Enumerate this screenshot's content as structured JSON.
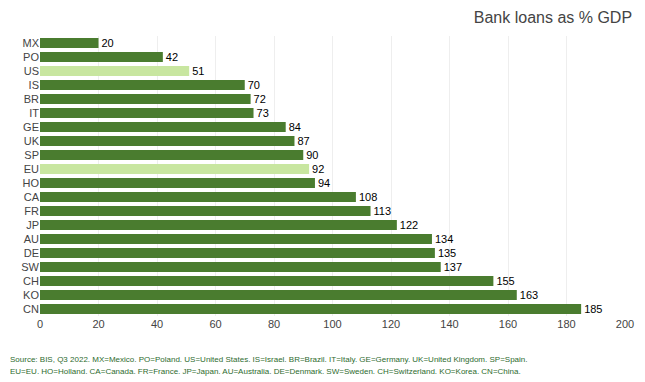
{
  "chart_data": {
    "type": "bar",
    "orientation": "horizontal",
    "title": "Bank loans as % GDP",
    "categories": [
      "MX",
      "PO",
      "US",
      "IS",
      "BR",
      "IT",
      "GE",
      "UK",
      "SP",
      "EU",
      "HO",
      "CA",
      "FR",
      "JP",
      "AU",
      "DE",
      "SW",
      "CH",
      "KO",
      "CN"
    ],
    "values": [
      20,
      42,
      51,
      70,
      72,
      73,
      84,
      87,
      90,
      92,
      94,
      108,
      113,
      122,
      134,
      135,
      137,
      155,
      163,
      185
    ],
    "colors": [
      "#4a7c2f",
      "#4a7c2f",
      "#c8e6a0",
      "#4a7c2f",
      "#4a7c2f",
      "#4a7c2f",
      "#4a7c2f",
      "#4a7c2f",
      "#4a7c2f",
      "#c8e6a0",
      "#4a7c2f",
      "#4a7c2f",
      "#4a7c2f",
      "#4a7c2f",
      "#4a7c2f",
      "#4a7c2f",
      "#4a7c2f",
      "#4a7c2f",
      "#4a7c2f",
      "#4a7c2f"
    ],
    "xlim": [
      0,
      200
    ],
    "xticks": [
      0,
      20,
      40,
      60,
      80,
      100,
      120,
      140,
      160,
      180,
      200
    ],
    "grid": true,
    "data_labels": true,
    "annotations": [
      "Source: BIS, Q3 2022. MX=Mexico. PO=Poland. US=United States. IS=Israel. BR=Brazil. IT=Italy. GE=Germany. UK=United Kingdom. SP=Spain.",
      "EU=EU. HO=Holland. CA=Canada. FR=France. JP=Japan. AU=Australia. DE=Denmark. SW=Sweden. CH=Switzerland. KO=Korea. CN=China."
    ]
  }
}
